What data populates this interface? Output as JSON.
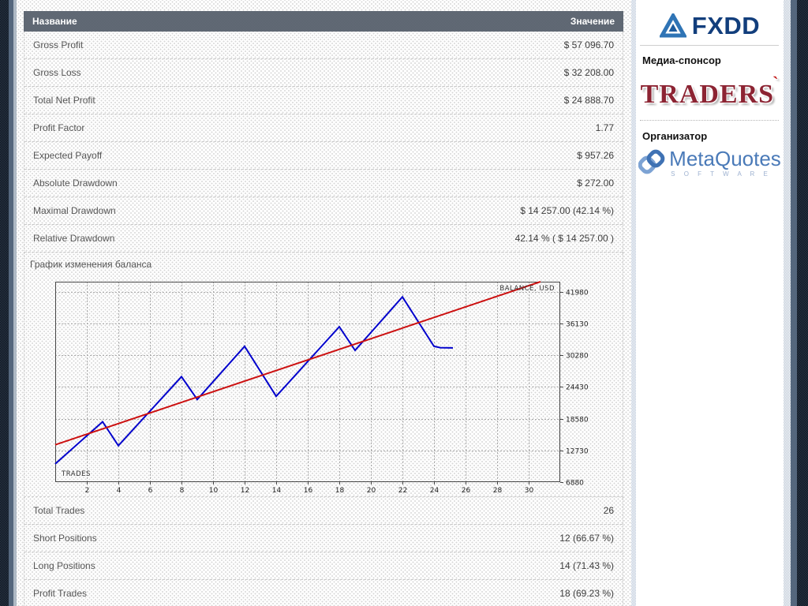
{
  "table": {
    "header": {
      "name": "Название",
      "value": "Значение"
    },
    "rows_top": [
      {
        "label": "Gross Profit",
        "value": "$ 57 096.70"
      },
      {
        "label": "Gross Loss",
        "value": "$ 32 208.00"
      },
      {
        "label": "Total Net Profit",
        "value": "$ 24 888.70"
      },
      {
        "label": "Profit Factor",
        "value": "1.77"
      },
      {
        "label": "Expected Payoff",
        "value": "$ 957.26"
      },
      {
        "label": "Absolute Drawdown",
        "value": "$ 272.00"
      },
      {
        "label": "Maximal Drawdown",
        "value": "$ 14 257.00 (42.14 %)"
      },
      {
        "label": "Relative Drawdown",
        "value": "42.14 % ( $ 14 257.00 )"
      }
    ],
    "rows_bottom": [
      {
        "label": "Total Trades",
        "value": "26"
      },
      {
        "label": "Short Positions",
        "value": "12 (66.67 %)"
      },
      {
        "label": "Long Positions",
        "value": "14 (71.43 %)"
      },
      {
        "label": "Profit Trades",
        "value": "18 (69.23 %)"
      }
    ]
  },
  "chart_data": {
    "type": "line",
    "title": "График изменения баланса",
    "xlabel": "TRADES",
    "legend_label": "BALANCE, USD",
    "xlim": [
      0,
      32
    ],
    "ylim": [
      6880,
      43800
    ],
    "xticks": [
      2,
      4,
      6,
      8,
      10,
      12,
      14,
      16,
      18,
      20,
      22,
      24,
      26,
      28,
      30
    ],
    "yticks": [
      6880,
      12730,
      18580,
      24430,
      30280,
      36130,
      41980
    ],
    "grid": true,
    "legend_position": "top-right",
    "series": [
      {
        "name": "balance-line",
        "color": "#0000cc",
        "points": [
          [
            0,
            10240
          ],
          [
            3,
            18000
          ],
          [
            4,
            13600
          ],
          [
            8,
            26300
          ],
          [
            9,
            22100
          ],
          [
            12,
            31900
          ],
          [
            14,
            22700
          ],
          [
            18,
            35500
          ],
          [
            19,
            31150
          ],
          [
            22,
            41000
          ],
          [
            24,
            31900
          ],
          [
            24.4,
            31650
          ],
          [
            25.2,
            31600
          ]
        ]
      },
      {
        "name": "trend-line",
        "color": "#cc1111",
        "points": [
          [
            0,
            13750
          ],
          [
            30.75,
            43800
          ]
        ]
      }
    ]
  },
  "sidebar": {
    "fxdd_logo_text": "FXDD",
    "media_sponsor_heading": "Медиа-спонсор",
    "traders_logo_text": "TRADERS",
    "organizer_heading": "Организатор",
    "metaquotes_logo_text": "MetaQuotes",
    "metaquotes_logo_sub": "S O F T W A R E"
  },
  "colors": {
    "balance_line": "#0000cc",
    "trend_line": "#cc1111",
    "header_bar": "#5a626e",
    "fxdd_blue": "#123e7c",
    "traders_red": "#8c2433",
    "metaquotes_blue": "#4a7ab8"
  }
}
